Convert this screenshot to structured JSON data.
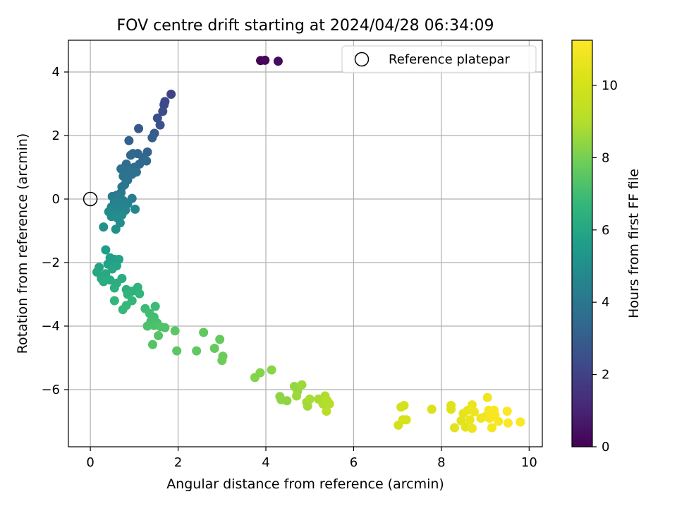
{
  "chart_data": {
    "type": "scatter",
    "title": "FOV centre drift starting at 2024/04/28 06:34:09",
    "xlabel": "Angular distance from reference (arcmin)",
    "ylabel": "Rotation from reference (arcmin)",
    "xlim": [
      -0.5,
      10.3
    ],
    "ylim": [
      -7.8,
      5.0
    ],
    "xticks": [
      0,
      2,
      4,
      6,
      8,
      10
    ],
    "yticks": [
      -6,
      -4,
      -2,
      0,
      2,
      4
    ],
    "grid": true,
    "colormap": "viridis",
    "colorbar": {
      "label": "Hours from first FF file",
      "range": [
        0,
        11.25
      ],
      "ticks": [
        0,
        2,
        4,
        6,
        8,
        10
      ]
    },
    "legend": {
      "position": "top-right",
      "entries": [
        "Reference platepar"
      ]
    },
    "reference_point": {
      "x": 0,
      "y": 0
    },
    "series": [
      {
        "name": "",
        "points": [
          {
            "x": 3.88,
            "y": 4.36,
            "c": 0.1
          },
          {
            "x": 3.98,
            "y": 4.37,
            "c": 0.2
          },
          {
            "x": 4.28,
            "y": 4.34,
            "c": 0.3
          },
          {
            "x": 1.84,
            "y": 3.3,
            "c": 2.0
          },
          {
            "x": 1.7,
            "y": 3.07,
            "c": 2.2
          },
          {
            "x": 1.68,
            "y": 2.97,
            "c": 2.3
          },
          {
            "x": 1.65,
            "y": 2.76,
            "c": 2.4
          },
          {
            "x": 1.53,
            "y": 2.55,
            "c": 2.5
          },
          {
            "x": 1.59,
            "y": 2.33,
            "c": 2.6
          },
          {
            "x": 1.1,
            "y": 2.22,
            "c": 2.8
          },
          {
            "x": 1.46,
            "y": 2.07,
            "c": 2.9
          },
          {
            "x": 1.41,
            "y": 1.93,
            "c": 3.0
          },
          {
            "x": 0.88,
            "y": 1.84,
            "c": 3.1
          },
          {
            "x": 1.3,
            "y": 1.48,
            "c": 3.2
          },
          {
            "x": 0.97,
            "y": 1.43,
            "c": 3.3
          },
          {
            "x": 1.08,
            "y": 1.43,
            "c": 3.3
          },
          {
            "x": 0.92,
            "y": 1.38,
            "c": 3.4
          },
          {
            "x": 1.2,
            "y": 1.3,
            "c": 3.4
          },
          {
            "x": 1.28,
            "y": 1.2,
            "c": 3.5
          },
          {
            "x": 1.12,
            "y": 1.1,
            "c": 3.5
          },
          {
            "x": 0.82,
            "y": 1.1,
            "c": 3.6
          },
          {
            "x": 1.0,
            "y": 1.0,
            "c": 3.6
          },
          {
            "x": 0.7,
            "y": 0.95,
            "c": 3.7
          },
          {
            "x": 0.88,
            "y": 0.9,
            "c": 3.7
          },
          {
            "x": 1.05,
            "y": 0.85,
            "c": 3.8
          },
          {
            "x": 0.95,
            "y": 0.78,
            "c": 3.8
          },
          {
            "x": 0.75,
            "y": 0.72,
            "c": 3.9
          },
          {
            "x": 0.85,
            "y": 0.6,
            "c": 3.9
          },
          {
            "x": 0.78,
            "y": 0.45,
            "c": 4.0
          },
          {
            "x": 0.72,
            "y": 0.38,
            "c": 4.0
          },
          {
            "x": 0.7,
            "y": 0.2,
            "c": 4.1
          },
          {
            "x": 0.6,
            "y": 0.12,
            "c": 4.2
          },
          {
            "x": 0.5,
            "y": 0.08,
            "c": 4.2
          },
          {
            "x": 0.65,
            "y": 0.05,
            "c": 4.3
          },
          {
            "x": 0.95,
            "y": 0.02,
            "c": 4.3
          },
          {
            "x": 0.75,
            "y": -0.05,
            "c": 4.4
          },
          {
            "x": 0.55,
            "y": -0.1,
            "c": 4.4
          },
          {
            "x": 0.85,
            "y": -0.15,
            "c": 4.5
          },
          {
            "x": 0.7,
            "y": -0.2,
            "c": 4.5
          },
          {
            "x": 0.48,
            "y": -0.25,
            "c": 4.6
          },
          {
            "x": 0.62,
            "y": -0.3,
            "c": 4.6
          },
          {
            "x": 1.02,
            "y": -0.32,
            "c": 4.7
          },
          {
            "x": 0.8,
            "y": -0.35,
            "c": 4.7
          },
          {
            "x": 0.42,
            "y": -0.4,
            "c": 4.8
          },
          {
            "x": 0.55,
            "y": -0.45,
            "c": 4.8
          },
          {
            "x": 0.72,
            "y": -0.5,
            "c": 4.9
          },
          {
            "x": 0.48,
            "y": -0.55,
            "c": 4.9
          },
          {
            "x": 0.62,
            "y": -0.6,
            "c": 5.0
          },
          {
            "x": 0.68,
            "y": -0.75,
            "c": 5.0
          },
          {
            "x": 0.3,
            "y": -0.88,
            "c": 5.1
          },
          {
            "x": 0.58,
            "y": -0.95,
            "c": 5.1
          },
          {
            "x": 0.35,
            "y": -1.6,
            "c": 5.6
          },
          {
            "x": 0.45,
            "y": -1.85,
            "c": 5.7
          },
          {
            "x": 0.55,
            "y": -1.9,
            "c": 5.7
          },
          {
            "x": 0.65,
            "y": -1.9,
            "c": 5.8
          },
          {
            "x": 0.4,
            "y": -2.05,
            "c": 5.8
          },
          {
            "x": 0.6,
            "y": -2.1,
            "c": 5.9
          },
          {
            "x": 0.2,
            "y": -2.15,
            "c": 5.9
          },
          {
            "x": 0.5,
            "y": -2.2,
            "c": 6.0
          },
          {
            "x": 0.15,
            "y": -2.3,
            "c": 6.0
          },
          {
            "x": 0.35,
            "y": -2.35,
            "c": 6.1
          },
          {
            "x": 0.25,
            "y": -2.5,
            "c": 6.1
          },
          {
            "x": 0.72,
            "y": -2.5,
            "c": 6.2
          },
          {
            "x": 0.45,
            "y": -2.55,
            "c": 6.2
          },
          {
            "x": 0.3,
            "y": -2.6,
            "c": 6.3
          },
          {
            "x": 0.6,
            "y": -2.65,
            "c": 6.3
          },
          {
            "x": 0.55,
            "y": -2.8,
            "c": 6.4
          },
          {
            "x": 0.82,
            "y": -2.85,
            "c": 6.4
          },
          {
            "x": 1.08,
            "y": -2.78,
            "c": 6.5
          },
          {
            "x": 0.95,
            "y": -2.9,
            "c": 6.5
          },
          {
            "x": 0.85,
            "y": -3.0,
            "c": 6.6
          },
          {
            "x": 1.12,
            "y": -2.98,
            "c": 6.6
          },
          {
            "x": 0.55,
            "y": -3.2,
            "c": 6.7
          },
          {
            "x": 0.95,
            "y": -3.2,
            "c": 6.7
          },
          {
            "x": 0.82,
            "y": -3.35,
            "c": 6.8
          },
          {
            "x": 0.74,
            "y": -3.48,
            "c": 6.8
          },
          {
            "x": 1.25,
            "y": -3.45,
            "c": 6.9
          },
          {
            "x": 1.48,
            "y": -3.38,
            "c": 6.9
          },
          {
            "x": 1.35,
            "y": -3.6,
            "c": 7.0
          },
          {
            "x": 1.45,
            "y": -3.72,
            "c": 7.0
          },
          {
            "x": 1.38,
            "y": -3.85,
            "c": 7.1
          },
          {
            "x": 1.52,
            "y": -3.9,
            "c": 7.1
          },
          {
            "x": 1.3,
            "y": -4.0,
            "c": 7.2
          },
          {
            "x": 1.45,
            "y": -3.98,
            "c": 7.2
          },
          {
            "x": 1.6,
            "y": -4.02,
            "c": 7.3
          },
          {
            "x": 1.7,
            "y": -4.05,
            "c": 7.3
          },
          {
            "x": 1.55,
            "y": -4.3,
            "c": 7.4
          },
          {
            "x": 1.42,
            "y": -4.58,
            "c": 7.4
          },
          {
            "x": 1.93,
            "y": -4.15,
            "c": 7.5
          },
          {
            "x": 1.97,
            "y": -4.78,
            "c": 7.5
          },
          {
            "x": 2.58,
            "y": -4.2,
            "c": 7.6
          },
          {
            "x": 2.42,
            "y": -4.78,
            "c": 7.6
          },
          {
            "x": 2.83,
            "y": -4.7,
            "c": 7.7
          },
          {
            "x": 2.95,
            "y": -4.42,
            "c": 7.7
          },
          {
            "x": 3.02,
            "y": -4.95,
            "c": 7.8
          },
          {
            "x": 3.0,
            "y": -5.08,
            "c": 7.8
          },
          {
            "x": 3.75,
            "y": -5.62,
            "c": 8.2
          },
          {
            "x": 3.87,
            "y": -5.47,
            "c": 8.2
          },
          {
            "x": 4.13,
            "y": -5.38,
            "c": 8.3
          },
          {
            "x": 4.32,
            "y": -6.22,
            "c": 8.3
          },
          {
            "x": 4.35,
            "y": -6.32,
            "c": 8.4
          },
          {
            "x": 4.48,
            "y": -6.35,
            "c": 8.4
          },
          {
            "x": 4.65,
            "y": -5.9,
            "c": 8.5
          },
          {
            "x": 4.72,
            "y": -6.05,
            "c": 8.5
          },
          {
            "x": 4.7,
            "y": -6.2,
            "c": 8.6
          },
          {
            "x": 4.82,
            "y": -5.85,
            "c": 8.6
          },
          {
            "x": 4.93,
            "y": -6.4,
            "c": 8.7
          },
          {
            "x": 4.95,
            "y": -6.52,
            "c": 8.7
          },
          {
            "x": 5.0,
            "y": -6.3,
            "c": 8.8
          },
          {
            "x": 5.2,
            "y": -6.3,
            "c": 8.8
          },
          {
            "x": 5.3,
            "y": -6.45,
            "c": 8.9
          },
          {
            "x": 5.35,
            "y": -6.2,
            "c": 8.9
          },
          {
            "x": 5.4,
            "y": -6.35,
            "c": 9.0
          },
          {
            "x": 5.45,
            "y": -6.45,
            "c": 9.0
          },
          {
            "x": 5.38,
            "y": -6.68,
            "c": 9.1
          },
          {
            "x": 7.02,
            "y": -7.12,
            "c": 9.9
          },
          {
            "x": 7.08,
            "y": -6.55,
            "c": 9.9
          },
          {
            "x": 7.15,
            "y": -6.5,
            "c": 10.0
          },
          {
            "x": 7.12,
            "y": -6.95,
            "c": 10.0
          },
          {
            "x": 7.2,
            "y": -6.95,
            "c": 10.1
          },
          {
            "x": 7.78,
            "y": -6.62,
            "c": 10.2
          },
          {
            "x": 8.22,
            "y": -6.5,
            "c": 10.3
          },
          {
            "x": 8.22,
            "y": -6.62,
            "c": 10.3
          },
          {
            "x": 8.3,
            "y": -7.2,
            "c": 10.4
          },
          {
            "x": 8.45,
            "y": -6.98,
            "c": 10.4
          },
          {
            "x": 8.5,
            "y": -6.75,
            "c": 10.5
          },
          {
            "x": 8.55,
            "y": -7.18,
            "c": 10.5
          },
          {
            "x": 8.6,
            "y": -6.65,
            "c": 10.6
          },
          {
            "x": 8.65,
            "y": -6.95,
            "c": 10.6
          },
          {
            "x": 8.7,
            "y": -6.48,
            "c": 10.7
          },
          {
            "x": 8.7,
            "y": -7.22,
            "c": 10.7
          },
          {
            "x": 8.75,
            "y": -6.7,
            "c": 10.8
          },
          {
            "x": 8.9,
            "y": -6.9,
            "c": 10.8
          },
          {
            "x": 9.0,
            "y": -6.85,
            "c": 10.9
          },
          {
            "x": 9.05,
            "y": -6.25,
            "c": 10.9
          },
          {
            "x": 9.08,
            "y": -6.65,
            "c": 11.0
          },
          {
            "x": 9.1,
            "y": -6.9,
            "c": 11.0
          },
          {
            "x": 9.15,
            "y": -7.2,
            "c": 11.0
          },
          {
            "x": 9.2,
            "y": -6.65,
            "c": 11.1
          },
          {
            "x": 9.22,
            "y": -6.8,
            "c": 11.1
          },
          {
            "x": 9.3,
            "y": -7.0,
            "c": 11.1
          },
          {
            "x": 9.5,
            "y": -6.68,
            "c": 11.2
          },
          {
            "x": 9.52,
            "y": -7.05,
            "c": 11.2
          },
          {
            "x": 9.8,
            "y": -7.02,
            "c": 11.2
          }
        ]
      }
    ]
  }
}
